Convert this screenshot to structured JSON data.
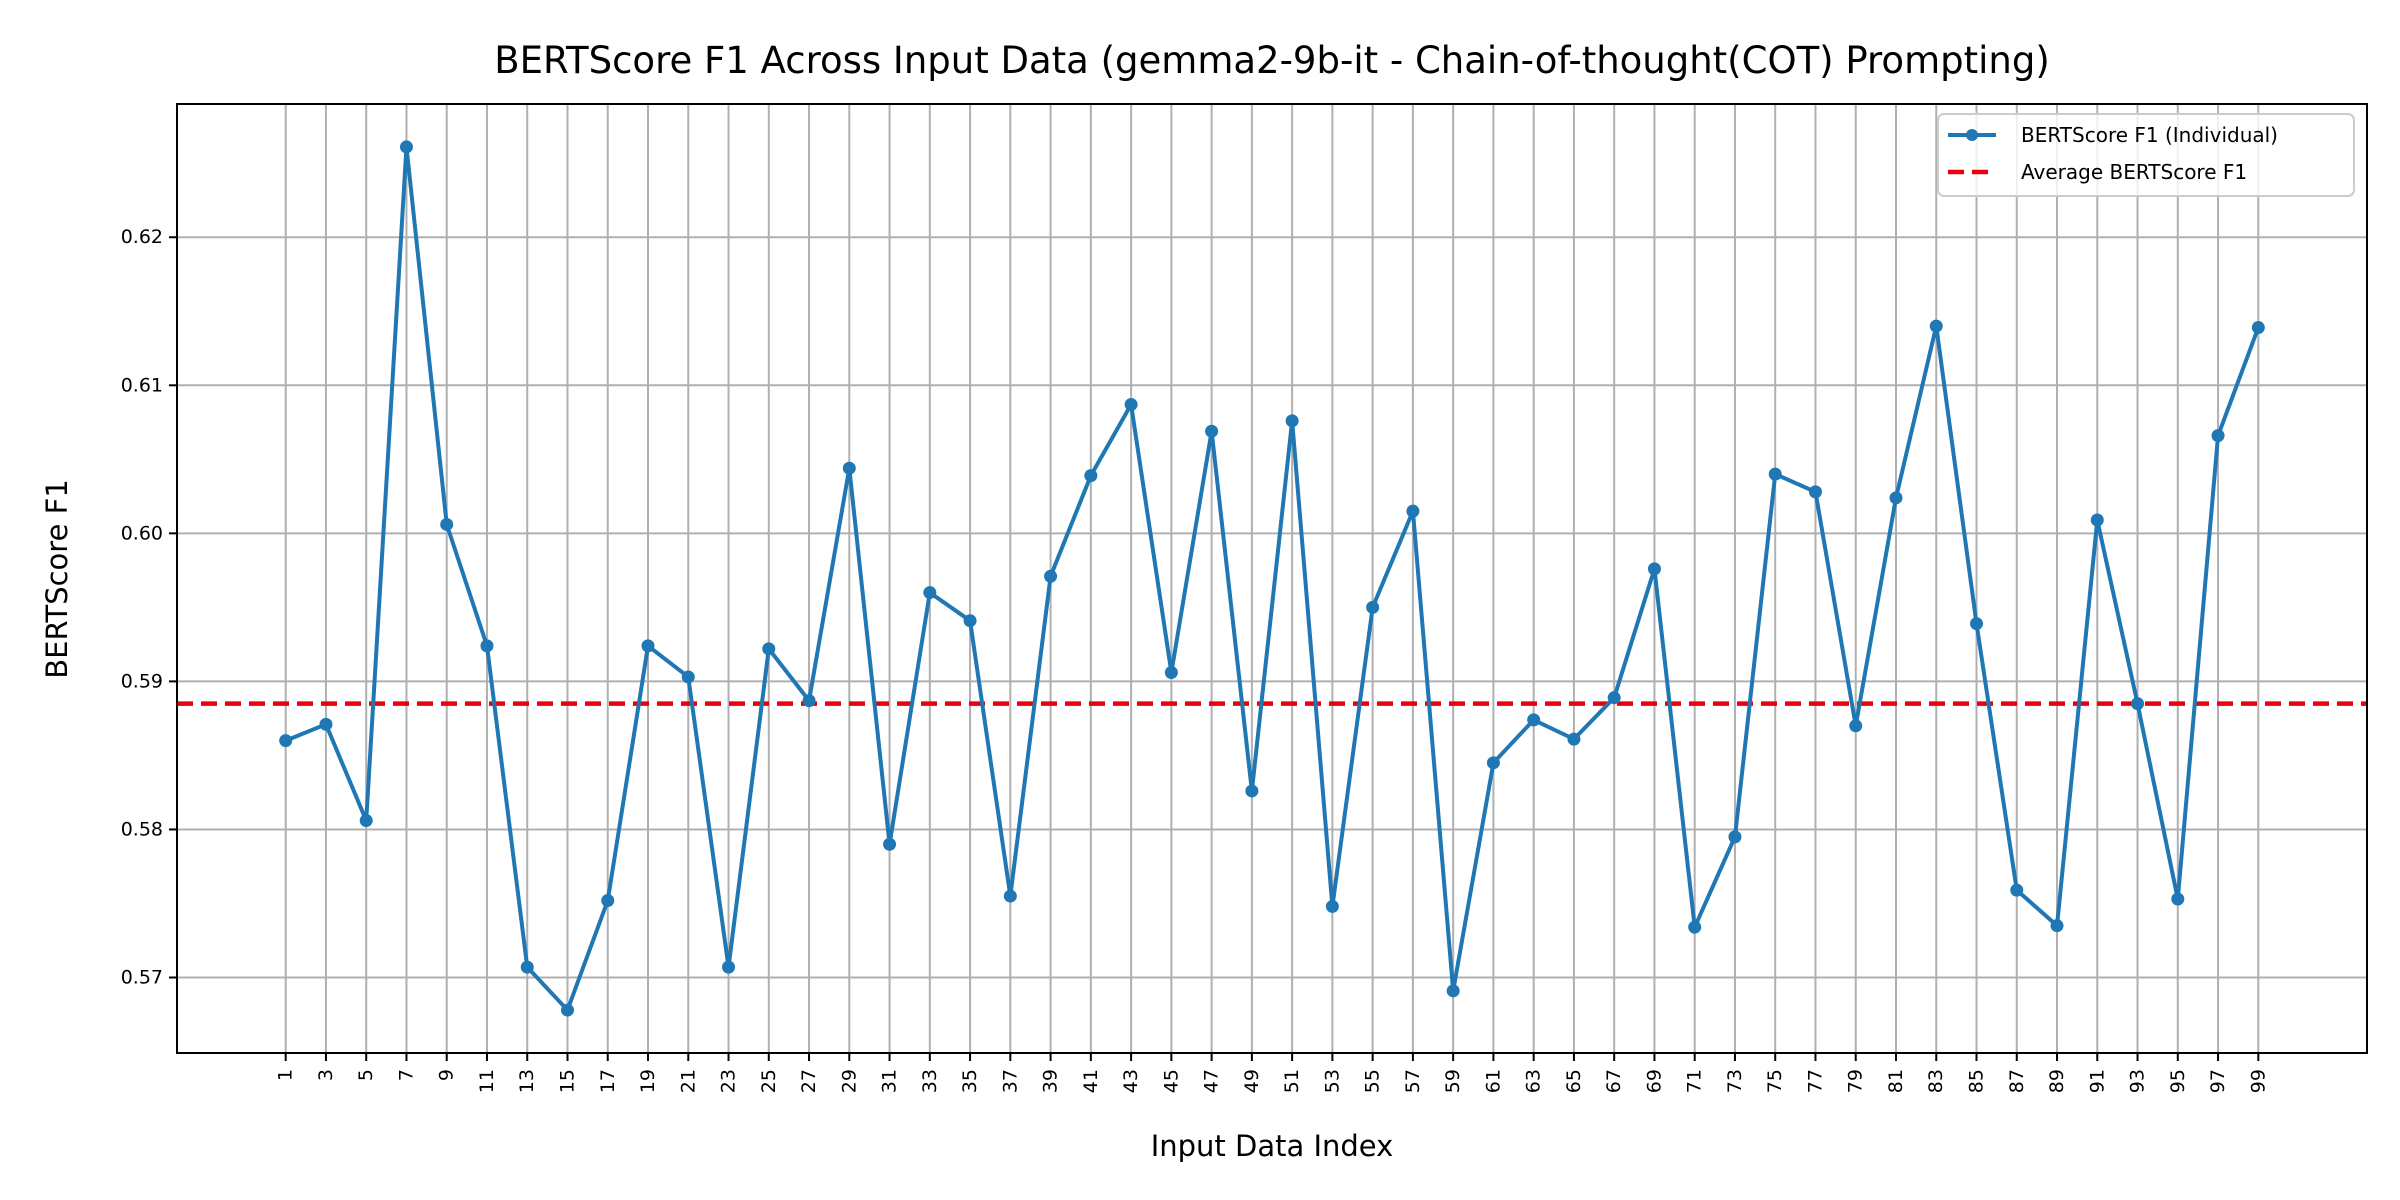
{
  "chart_data": {
    "type": "line",
    "title": "BERTScore F1 Across Input Data (gemma2-9b-it - Chain-of-thought(COT) Prompting)",
    "xlabel": "Input Data Index",
    "ylabel": "BERTScore F1",
    "x": [
      1,
      3,
      5,
      7,
      9,
      11,
      13,
      15,
      17,
      19,
      21,
      23,
      25,
      27,
      29,
      31,
      33,
      35,
      37,
      39,
      41,
      43,
      45,
      47,
      49,
      51,
      53,
      55,
      57,
      59,
      61,
      63,
      65,
      67,
      69,
      71,
      73,
      75,
      77,
      79,
      81,
      83,
      85,
      87,
      89,
      91,
      93,
      95,
      97,
      99
    ],
    "x_tick_labels": [
      "1",
      "3",
      "5",
      "7",
      "9",
      "11",
      "13",
      "15",
      "17",
      "19",
      "21",
      "23",
      "25",
      "27",
      "29",
      "31",
      "33",
      "35",
      "37",
      "39",
      "41",
      "43",
      "45",
      "47",
      "49",
      "51",
      "53",
      "55",
      "57",
      "59",
      "61",
      "63",
      "65",
      "67",
      "69",
      "71",
      "73",
      "75",
      "77",
      "79",
      "81",
      "83",
      "85",
      "87",
      "89",
      "91",
      "93",
      "95",
      "97",
      "99"
    ],
    "y_ticks": [
      0.57,
      0.58,
      0.59,
      0.6,
      0.61,
      0.62
    ],
    "y_tick_labels": [
      "0.57",
      "0.58",
      "0.59",
      "0.60",
      "0.61",
      "0.62"
    ],
    "xlim": [
      -4.4,
      104.4
    ],
    "ylim": [
      0.5649,
      0.629
    ],
    "grid": true,
    "legend_position": "top-right",
    "series": [
      {
        "name": "BERTScore F1 (Individual)",
        "color": "#1f77b4",
        "style": "solid-with-markers",
        "values": [
          0.586,
          0.5871,
          0.5806,
          0.6261,
          0.6006,
          0.5924,
          0.5707,
          0.5678,
          0.5752,
          0.5924,
          0.5903,
          0.5707,
          0.5922,
          0.5887,
          0.6044,
          0.579,
          0.596,
          0.5941,
          0.5755,
          0.5971,
          0.6039,
          0.6087,
          0.5906,
          0.6069,
          0.5826,
          0.6076,
          0.5748,
          0.595,
          0.6015,
          0.5691,
          0.5845,
          0.5874,
          0.5861,
          0.5889,
          0.5976,
          0.5734,
          0.5795,
          0.604,
          0.6028,
          0.587,
          0.6024,
          0.614,
          0.5939,
          0.5759,
          0.5735,
          0.6009,
          0.5885,
          0.5753,
          0.6066,
          0.6139
        ]
      },
      {
        "name": "Average BERTScore F1",
        "color": "#e8000b",
        "style": "dashed",
        "constant": 0.5885
      }
    ]
  }
}
